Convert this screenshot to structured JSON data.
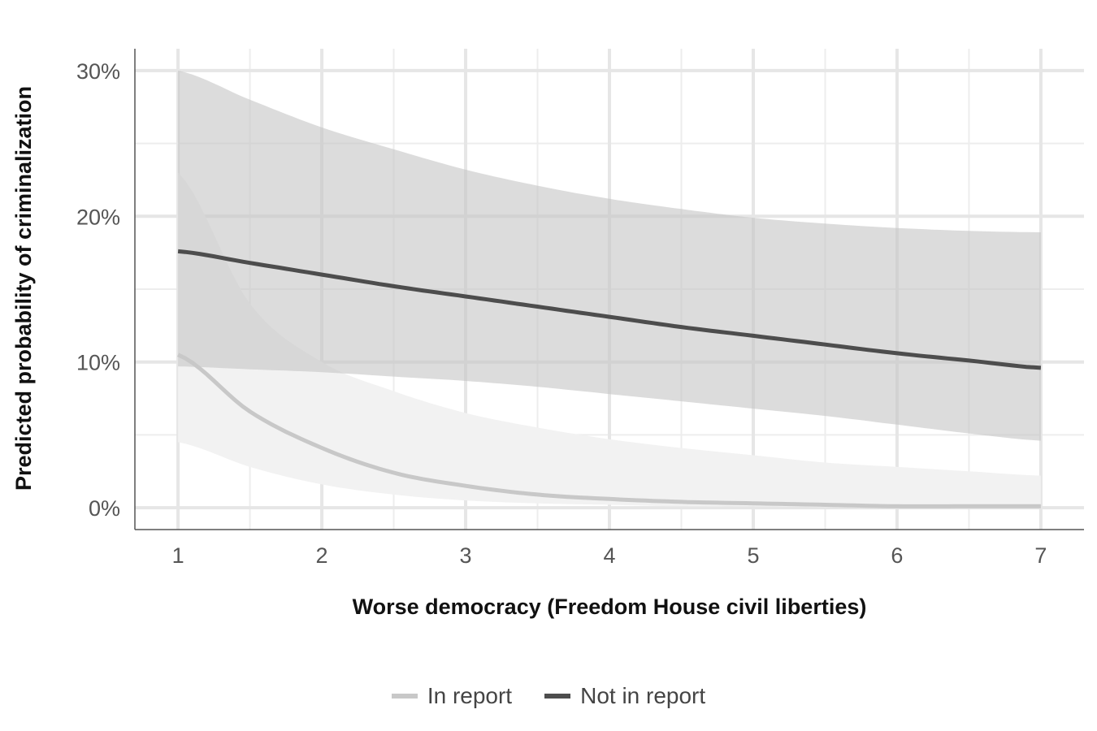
{
  "chart_data": {
    "type": "line",
    "title": "",
    "xlabel": "Worse democracy (Freedom House civil liberties)",
    "ylabel": "Predicted probability of criminalization",
    "xlim": [
      0.7,
      7.3
    ],
    "ylim": [
      -0.015,
      0.315
    ],
    "x_ticks": [
      1,
      2,
      3,
      4,
      5,
      6,
      7
    ],
    "x_tick_labels": [
      "1",
      "2",
      "3",
      "4",
      "5",
      "6",
      "7"
    ],
    "y_ticks": [
      0,
      0.1,
      0.2,
      0.3
    ],
    "y_tick_labels": [
      "0%",
      "10%",
      "20%",
      "30%"
    ],
    "grid": true,
    "legend_position": "bottom",
    "x": [
      1,
      1.5,
      2,
      2.5,
      3,
      3.5,
      4,
      4.5,
      5,
      5.5,
      6,
      6.5,
      7
    ],
    "series": [
      {
        "name": "In report",
        "color": "#c8c8c8",
        "ribbon_color": "#f2f2f2",
        "values": [
          0.105,
          0.066,
          0.041,
          0.024,
          0.015,
          0.009,
          0.006,
          0.004,
          0.003,
          0.002,
          0.001,
          0.001,
          0.001
        ],
        "lower": [
          0.045,
          0.028,
          0.016,
          0.009,
          0.005,
          0.003,
          0.002,
          0.001,
          0.001,
          0.0005,
          0.0003,
          0.0002,
          0.0001
        ],
        "upper": [
          0.23,
          0.14,
          0.1,
          0.08,
          0.065,
          0.055,
          0.047,
          0.041,
          0.036,
          0.031,
          0.028,
          0.025,
          0.022
        ]
      },
      {
        "name": "Not in report",
        "color": "#4d4d4d",
        "ribbon_color": "#c4c4c4",
        "values": [
          0.176,
          0.168,
          0.16,
          0.152,
          0.145,
          0.138,
          0.131,
          0.124,
          0.118,
          0.112,
          0.106,
          0.101,
          0.096
        ],
        "lower": [
          0.097,
          0.095,
          0.093,
          0.09,
          0.087,
          0.083,
          0.078,
          0.073,
          0.068,
          0.063,
          0.057,
          0.051,
          0.046
        ],
        "upper": [
          0.3,
          0.28,
          0.261,
          0.246,
          0.232,
          0.221,
          0.212,
          0.205,
          0.199,
          0.195,
          0.192,
          0.19,
          0.189
        ]
      }
    ]
  }
}
